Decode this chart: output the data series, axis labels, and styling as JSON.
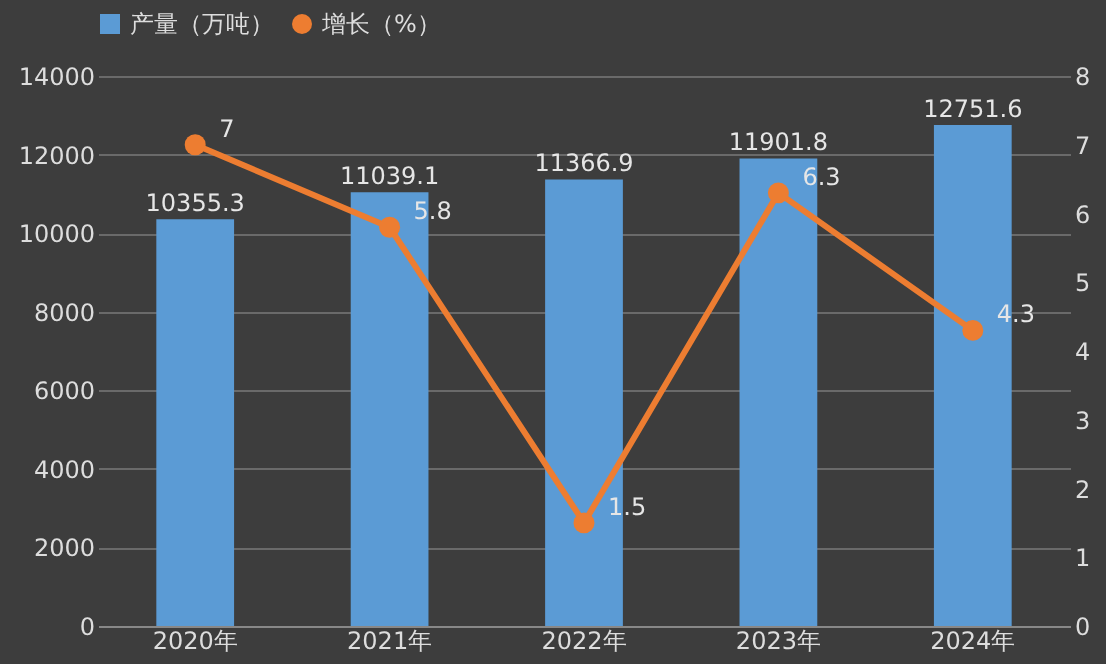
{
  "chart_data": {
    "type": "bar",
    "categories": [
      "2020年",
      "2021年",
      "2022年",
      "2023年",
      "2024年"
    ],
    "series": [
      {
        "name": "产量（万吨）",
        "color": "#5b9bd5",
        "values": [
          10355.3,
          11039.1,
          11366.9,
          11901.8,
          12751.6
        ]
      },
      {
        "name": "增长（%）",
        "type": "line",
        "axis": "y2",
        "color": "#ed7d31",
        "marker": "circle",
        "values": [
          7,
          5.8,
          1.5,
          6.3,
          4.3
        ]
      }
    ],
    "ylim": [
      0,
      14000
    ],
    "yticks": [
      0,
      2000,
      4000,
      6000,
      8000,
      10000,
      12000,
      14000
    ],
    "y2lim": [
      0,
      8
    ],
    "y2ticks": [
      0,
      1,
      2,
      3,
      4,
      5,
      6,
      7,
      8
    ],
    "grid": "y",
    "legend": "top",
    "data_labels": true
  }
}
